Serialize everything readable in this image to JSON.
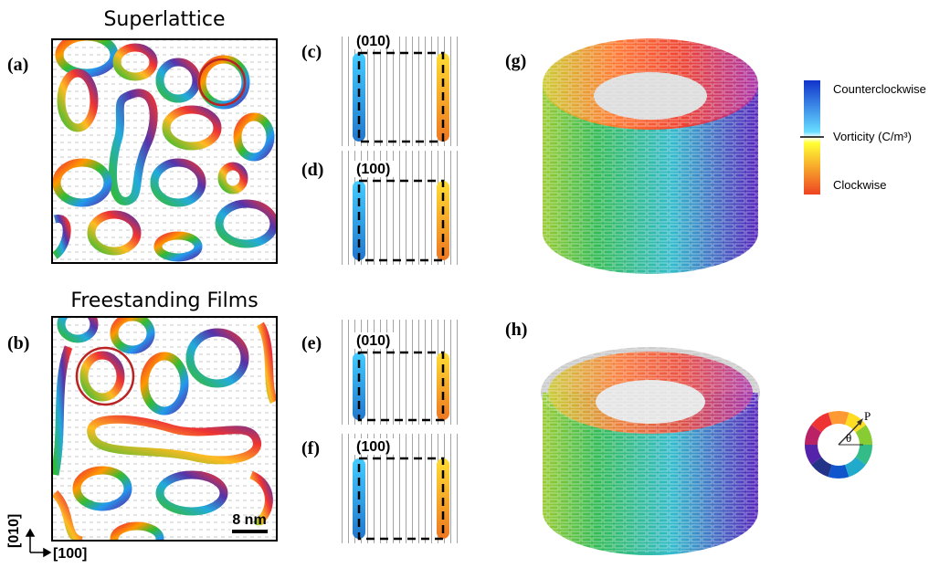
{
  "labels": [
    "(a)",
    "(b)",
    "(c)",
    "(d)",
    "(e)",
    "(f)",
    "(g)",
    "(h)"
  ],
  "titles": [
    "Superlattice",
    "Freestanding Films"
  ],
  "planes": [
    "(010)",
    "(100)",
    "(010)",
    "(100)"
  ],
  "scale_bar": "8 nm",
  "axes": [
    "[010]",
    "[100]"
  ],
  "legend": {
    "top": "Counterclockwise",
    "middle": "Vorticity (C/m³)",
    "bottom": "Clockwise"
  },
  "wheel": {
    "vector": "P",
    "angle": "θ"
  }
}
